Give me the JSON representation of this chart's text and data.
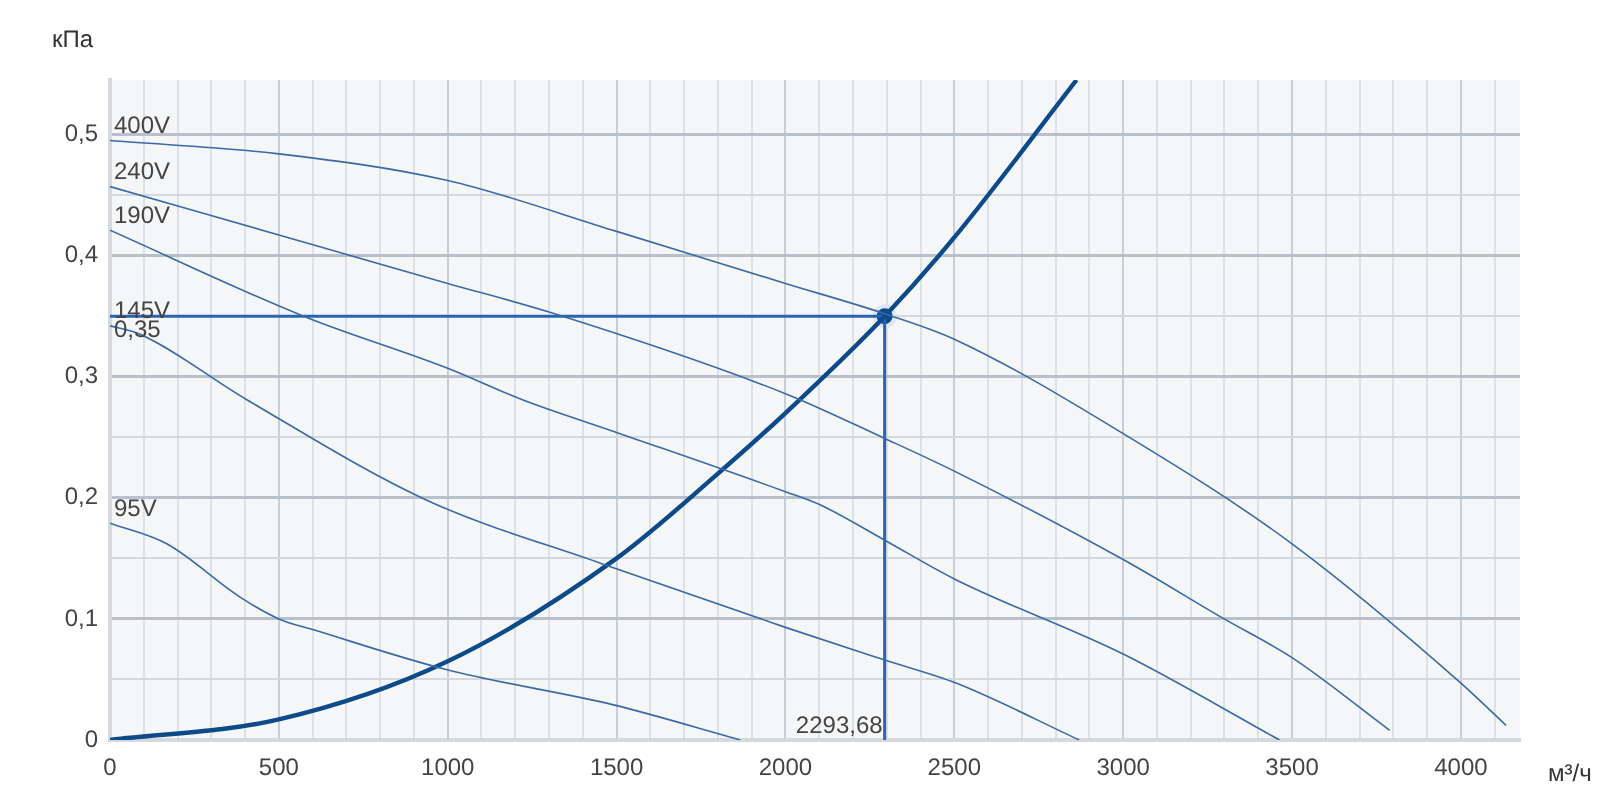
{
  "chart_data": {
    "type": "line",
    "xlabel": "м³/ч",
    "ylabel": "кПа",
    "xlim": [
      0,
      4175
    ],
    "ylim": [
      0,
      0.545
    ],
    "xticks": [
      0,
      {
        "value": 100,
        "label": null
      },
      {
        "value": 200,
        "label": null
      },
      {
        "value": 300,
        "label": null
      },
      {
        "value": 400,
        "label": null
      },
      500,
      {
        "value": 600,
        "label": null
      },
      {
        "value": 700,
        "label": null
      },
      {
        "value": 800,
        "label": null
      },
      {
        "value": 900,
        "label": null
      },
      1000,
      {
        "value": 1100,
        "label": null
      },
      {
        "value": 1200,
        "label": null
      },
      {
        "value": 1300,
        "label": null
      },
      {
        "value": 1400,
        "label": null
      },
      1500,
      {
        "value": 1600,
        "label": null
      },
      {
        "value": 1700,
        "label": null
      },
      {
        "value": 1800,
        "label": null
      },
      {
        "value": 1900,
        "label": null
      },
      2000,
      {
        "value": 2100,
        "label": null
      },
      {
        "value": 2200,
        "label": null
      },
      {
        "value": 2300,
        "label": null
      },
      {
        "value": 2400,
        "label": null
      },
      2500,
      {
        "value": 2600,
        "label": null
      },
      {
        "value": 2700,
        "label": null
      },
      {
        "value": 2800,
        "label": null
      },
      {
        "value": 2900,
        "label": null
      },
      3000,
      {
        "value": 3100,
        "label": null
      },
      {
        "value": 3200,
        "label": null
      },
      {
        "value": 3300,
        "label": null
      },
      {
        "value": 3400,
        "label": null
      },
      3500,
      {
        "value": 3600,
        "label": null
      },
      {
        "value": 3700,
        "label": null
      },
      {
        "value": 3800,
        "label": null
      },
      {
        "value": 3900,
        "label": null
      },
      4000,
      {
        "value": 4100,
        "label": null
      }
    ],
    "yticks": [
      {
        "value": 0,
        "label": "0"
      },
      {
        "value": 0.05,
        "label": null
      },
      {
        "value": 0.1,
        "label": "0,1"
      },
      {
        "value": 0.15,
        "label": null
      },
      {
        "value": 0.2,
        "label": "0,2"
      },
      {
        "value": 0.25,
        "label": null
      },
      {
        "value": 0.3,
        "label": "0,3"
      },
      {
        "value": 0.35,
        "label": null
      },
      {
        "value": 0.4,
        "label": "0,4"
      },
      {
        "value": 0.45,
        "label": null
      },
      {
        "value": 0.5,
        "label": "0,5"
      }
    ],
    "grid": true,
    "legend": false,
    "line_style": "solid",
    "series": [
      {
        "name": "400V",
        "type": "line",
        "color": "#3a6aa5",
        "x": [
          0,
          500,
          1000,
          1500,
          2000,
          2294,
          2500,
          3000,
          3500,
          4000,
          4134
        ],
        "values": [
          0.495,
          0.484,
          0.462,
          0.42,
          0.377,
          0.352,
          0.331,
          0.253,
          0.162,
          0.047,
          0.012
        ]
      },
      {
        "name": "240V",
        "type": "line",
        "color": "#3a6aa5",
        "x": [
          0,
          500,
          1000,
          1305,
          2000,
          2294,
          2500,
          3000,
          3299,
          3500,
          3789
        ],
        "values": [
          0.457,
          0.417,
          0.377,
          0.353,
          0.286,
          0.249,
          0.222,
          0.149,
          0.1,
          0.068,
          0.008
        ]
      },
      {
        "name": "190V",
        "type": "line",
        "color": "#3a6aa5",
        "x": [
          0,
          573,
          1000,
          1221,
          1500,
          2000,
          2104,
          2294,
          2500,
          3000,
          3463
        ],
        "values": [
          0.421,
          0.35,
          0.307,
          0.281,
          0.254,
          0.205,
          0.194,
          0.165,
          0.133,
          0.071,
          0
        ]
      },
      {
        "name": "145V",
        "type": "line",
        "color": "#3a6aa5",
        "x": [
          0,
          89,
          405,
          938,
          1452,
          2000,
          2294,
          2505,
          2870
        ],
        "values": [
          0.342,
          0.335,
          0.281,
          0.198,
          0.146,
          0.093,
          0.066,
          0.047,
          0
        ]
      },
      {
        "name": "95V",
        "type": "line",
        "color": "#3a6aa5",
        "x": [
          0,
          168,
          385,
          500,
          603,
          998,
          1491,
          1867
        ],
        "values": [
          0.179,
          0.162,
          0.118,
          0.1,
          0.091,
          0.058,
          0.029,
          0
        ]
      },
      {
        "type": "line",
        "color": "#0d4a8a",
        "x": [
          0,
          500,
          1000,
          1500,
          1800,
          2000,
          2294,
          2500,
          2862
        ],
        "values": [
          0,
          0.017,
          0.065,
          0.15,
          0.22,
          0.27,
          0.35,
          0.415,
          0.545
        ]
      },
      {
        "type": "line",
        "color": "#2a63b0",
        "x": [
          0,
          2293.68
        ],
        "values": [
          0.35,
          0.35
        ]
      },
      {
        "type": "line",
        "color": "#2a63b0",
        "x": [
          2293.68,
          2293.68
        ],
        "values": [
          0,
          0.35
        ]
      },
      {
        "type": "scatter",
        "marker": "circle",
        "color": "#0d4a8a",
        "x": [
          2293.68
        ],
        "values": [
          0.35
        ]
      }
    ],
    "annotations": [
      {
        "text": "0,35",
        "x": 0,
        "y": 0.35
      },
      {
        "text": "2293,68",
        "x": 2293.68,
        "y": 0
      }
    ]
  }
}
